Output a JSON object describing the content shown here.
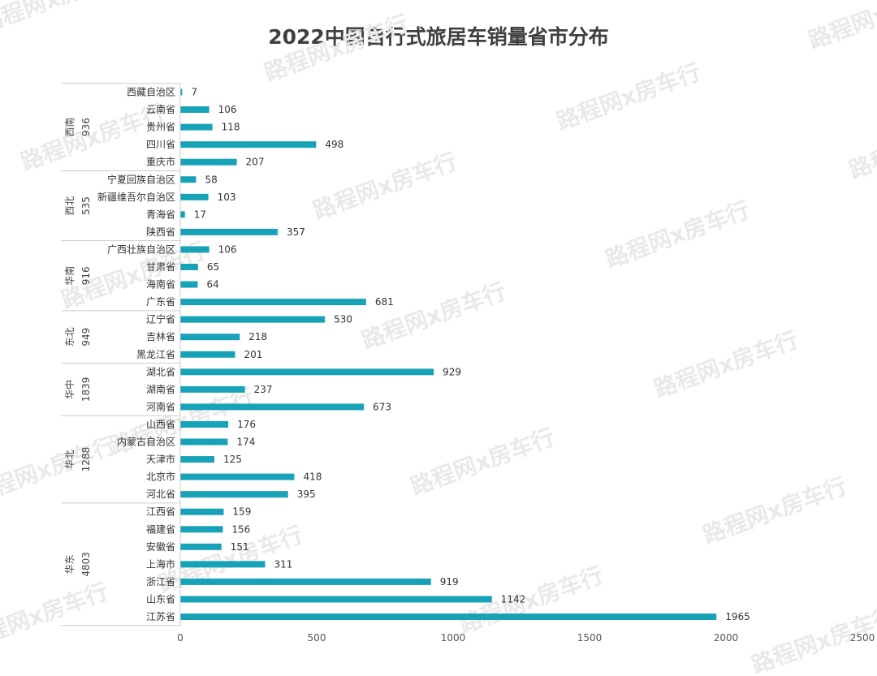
{
  "chart_data": {
    "type": "bar",
    "orientation": "horizontal",
    "title": "2022中国自行式旅居车销量省市分布",
    "xlim": [
      0,
      2500
    ],
    "xticks": [
      0,
      500,
      1000,
      1500,
      2000,
      2500
    ],
    "bar_color": "#17a2b8",
    "groups": [
      {
        "name": "西南",
        "total": "936",
        "items": [
          {
            "label": "西藏自治区",
            "value": 7
          },
          {
            "label": "云南省",
            "value": 106
          },
          {
            "label": "贵州省",
            "value": 118
          },
          {
            "label": "四川省",
            "value": 498
          },
          {
            "label": "重庆市",
            "value": 207
          }
        ]
      },
      {
        "name": "西北",
        "total": "535",
        "items": [
          {
            "label": "宁夏回族自治区",
            "value": 58
          },
          {
            "label": "新疆维吾尔自治区",
            "value": 103
          },
          {
            "label": "青海省",
            "value": 17
          },
          {
            "label": "陕西省",
            "value": 357
          }
        ]
      },
      {
        "name": "华南",
        "total": "916",
        "items": [
          {
            "label": "广西壮族自治区",
            "value": 106
          },
          {
            "label": "甘肃省",
            "value": 65
          },
          {
            "label": "海南省",
            "value": 64
          },
          {
            "label": "广东省",
            "value": 681
          }
        ]
      },
      {
        "name": "东北",
        "total": "949",
        "items": [
          {
            "label": "辽宁省",
            "value": 530
          },
          {
            "label": "吉林省",
            "value": 218
          },
          {
            "label": "黑龙江省",
            "value": 201
          }
        ]
      },
      {
        "name": "华中",
        "total": "1839",
        "items": [
          {
            "label": "湖北省",
            "value": 929
          },
          {
            "label": "湖南省",
            "value": 237
          },
          {
            "label": "河南省",
            "value": 673
          }
        ]
      },
      {
        "name": "华北",
        "total": "1288",
        "items": [
          {
            "label": "山西省",
            "value": 176
          },
          {
            "label": "内蒙古自治区",
            "value": 174
          },
          {
            "label": "天津市",
            "value": 125
          },
          {
            "label": "北京市",
            "value": 418
          },
          {
            "label": "河北省",
            "value": 395
          }
        ]
      },
      {
        "name": "华东",
        "total": "4803",
        "items": [
          {
            "label": "江西省",
            "value": 159
          },
          {
            "label": "福建省",
            "value": 156
          },
          {
            "label": "安徽省",
            "value": 151
          },
          {
            "label": "上海市",
            "value": 311
          },
          {
            "label": "浙江省",
            "value": 919
          },
          {
            "label": "山东省",
            "value": 1142
          },
          {
            "label": "江苏省",
            "value": 1965
          }
        ]
      }
    ]
  },
  "watermark": "路程网x房车行"
}
